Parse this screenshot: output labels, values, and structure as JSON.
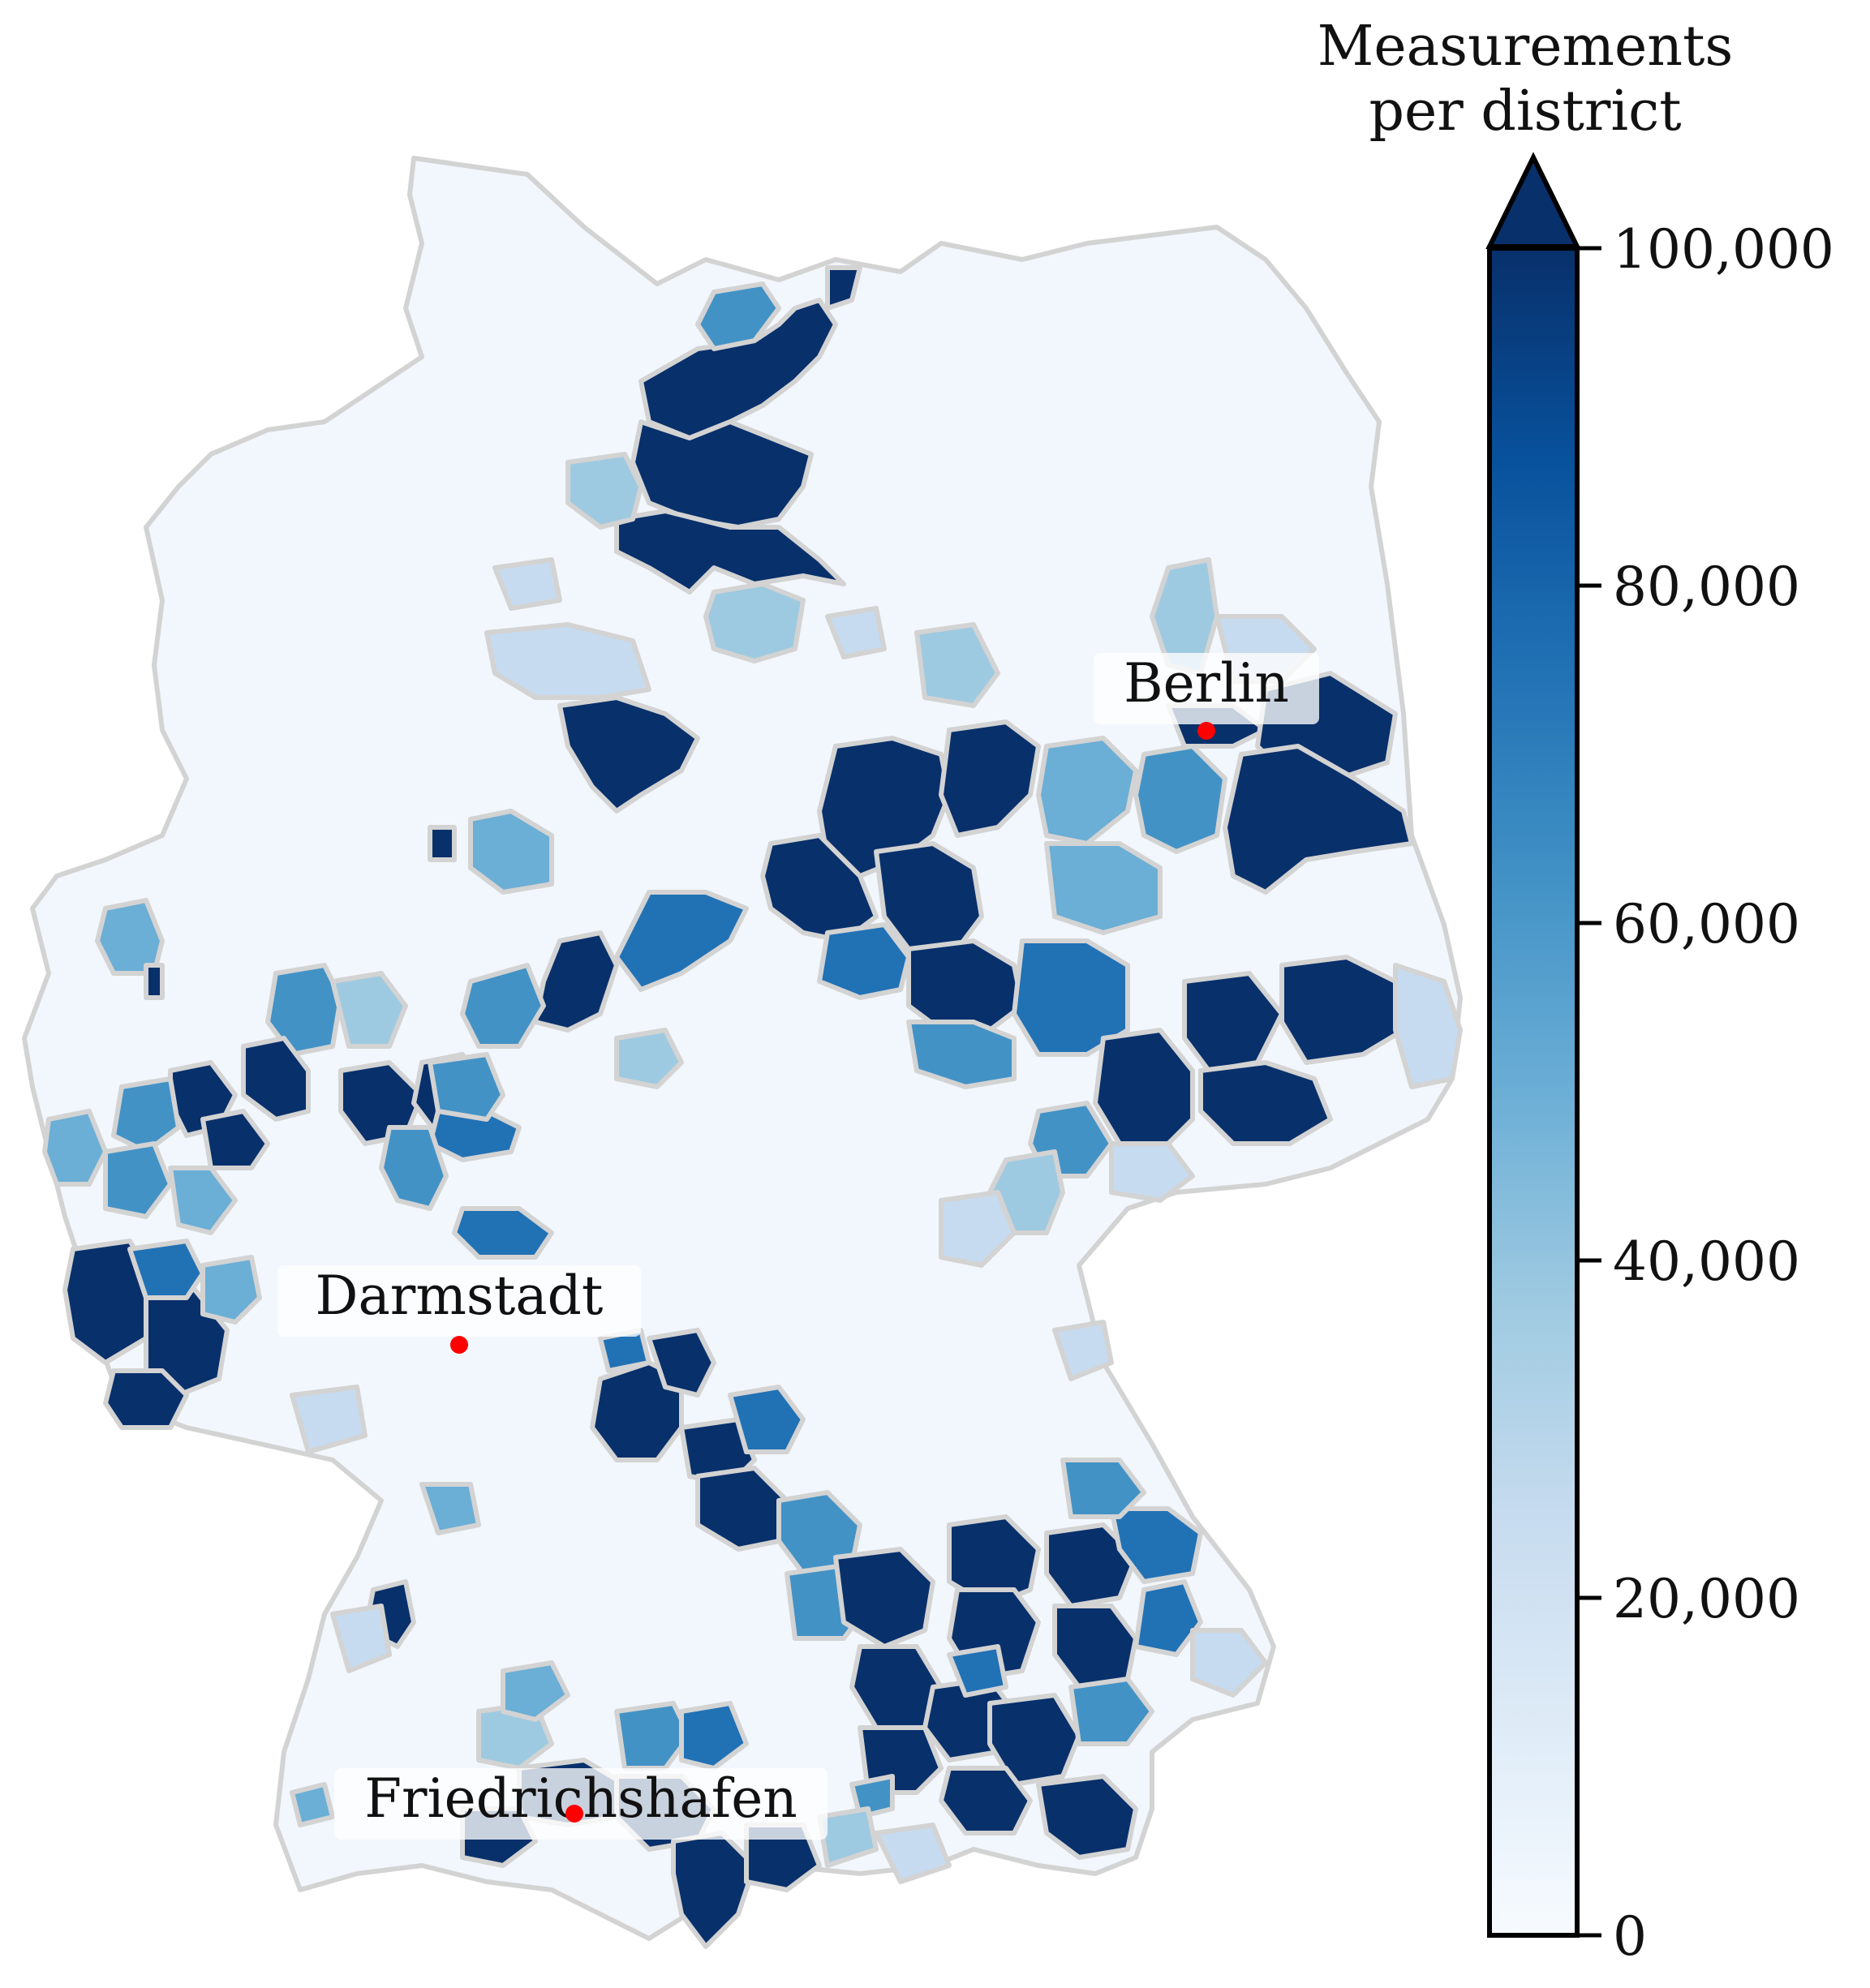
{
  "legend": {
    "title_line1": "Measurements",
    "title_line2": "per district",
    "ticks": [
      "100,000",
      "80,000",
      "60,000",
      "40,000",
      "20,000",
      "0"
    ],
    "tick_values": [
      100000,
      80000,
      60000,
      40000,
      20000,
      0
    ],
    "min": 0,
    "max": 100000,
    "extend": "max",
    "colormap": "Blues",
    "gradient_colors": [
      "#f7fbff",
      "#deebf7",
      "#c6dbef",
      "#9ecae1",
      "#6baed6",
      "#4292c6",
      "#2171b5",
      "#08519c",
      "#08306b"
    ]
  },
  "cities": [
    {
      "name": "Berlin"
    },
    {
      "name": "Darmstadt"
    },
    {
      "name": "Friedrichshafen"
    }
  ],
  "style": {
    "border_color": "#d3d3d3",
    "marker_color": "#ff0000"
  }
}
